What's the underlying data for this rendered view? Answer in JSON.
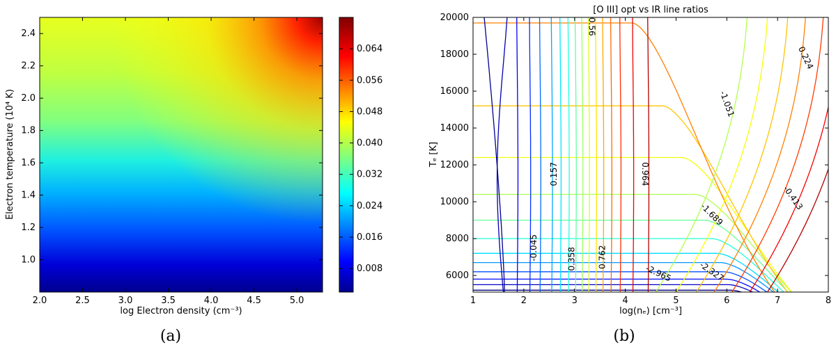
{
  "chart_data": [
    {
      "panel": "(a)",
      "type": "heatmap",
      "xlabel": "log Electron density (cm⁻³)",
      "ylabel": "Electron temperature (10⁴ K)",
      "xlim": [
        2.0,
        5.3
      ],
      "ylim": [
        0.8,
        2.5
      ],
      "xticks": [
        "2.0",
        "2.5",
        "3.0",
        "3.5",
        "4.0",
        "4.5",
        "5.0"
      ],
      "yticks": [
        "1.0",
        "1.2",
        "1.4",
        "1.6",
        "1.8",
        "2.0",
        "2.2",
        "2.4"
      ],
      "colorbar": {
        "range": [
          0.002,
          0.072
        ],
        "ticks": [
          "0.008",
          "0.016",
          "0.024",
          "0.032",
          "0.040",
          "0.048",
          "0.056",
          "0.064"
        ],
        "colormap": "jet"
      }
    },
    {
      "panel": "(b)",
      "type": "contour",
      "title": "[O III] opt vs IR line ratios",
      "xlabel": "log(nₑ) [cm⁻³]",
      "ylabel": "Tₑ [K]",
      "xlim": [
        1,
        8
      ],
      "ylim": [
        5100,
        20000
      ],
      "xticks": [
        "1",
        "2",
        "3",
        "4",
        "5",
        "6",
        "7",
        "8"
      ],
      "yticks": [
        "6000",
        "8000",
        "10000",
        "12000",
        "14000",
        "16000",
        "18000",
        "20000"
      ],
      "contour_labels": [
        "0.56",
        "0.224",
        "-1.051",
        "0.157",
        "0.964",
        "-0.413",
        "-1.689",
        "-0.045",
        "0.358",
        "0.762",
        "-2.965",
        "-2.327"
      ],
      "colormap": "jet"
    }
  ],
  "captions": {
    "a": "(a)",
    "b": "(b)"
  }
}
